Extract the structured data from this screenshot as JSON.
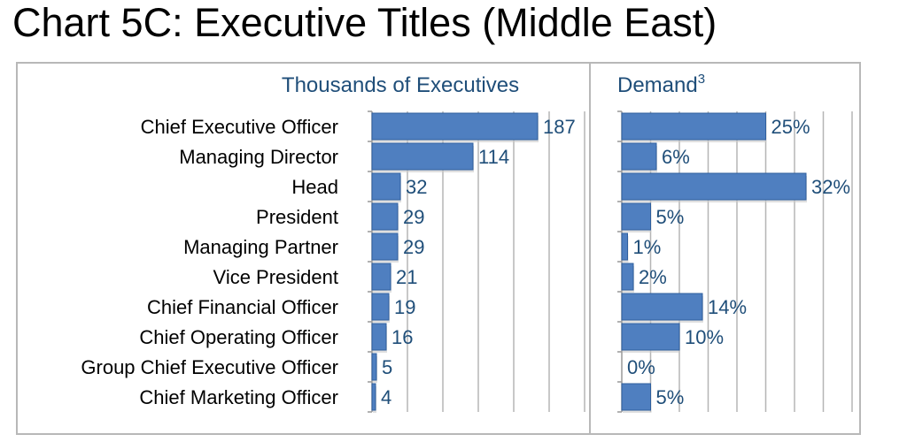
{
  "title": "Chart 5C: Executive Titles (Middle East)",
  "colors": {
    "bar": "#4f7fc0",
    "bar_edge": "#2f5f9e",
    "header": "#1f4e79",
    "grid": "#b5b5b5",
    "frame": "#b8b8b8"
  },
  "chart_data": [
    {
      "type": "bar",
      "orientation": "horizontal",
      "title": "Thousands of Executives",
      "categories": [
        "Chief Executive Officer",
        "Managing Director",
        "Head",
        "President",
        "Managing Partner",
        "Vice President",
        "Chief Financial Officer",
        "Chief Operating Officer",
        "Group Chief Executive Officer",
        "Chief Marketing Officer"
      ],
      "values": [
        187,
        114,
        32,
        29,
        29,
        21,
        19,
        16,
        5,
        4
      ],
      "value_labels": [
        "187",
        "114",
        "32",
        "29",
        "29",
        "21",
        "19",
        "16",
        "5",
        "4"
      ],
      "xlim": [
        0,
        240
      ],
      "grid": true
    },
    {
      "type": "bar",
      "orientation": "horizontal",
      "title": "Demand",
      "title_superscript": "3",
      "categories": [
        "Chief Executive Officer",
        "Managing Director",
        "Head",
        "President",
        "Managing Partner",
        "Vice President",
        "Chief Financial Officer",
        "Chief Operating Officer",
        "Group Chief Executive Officer",
        "Chief Marketing Officer"
      ],
      "values": [
        25,
        6,
        32,
        5,
        1,
        2,
        14,
        10,
        0,
        5
      ],
      "value_labels": [
        "25%",
        "6%",
        "32%",
        "5%",
        "1%",
        "2%",
        "14%",
        "10%",
        "0%",
        "5%"
      ],
      "xlim": [
        0,
        40
      ],
      "grid": true
    }
  ]
}
